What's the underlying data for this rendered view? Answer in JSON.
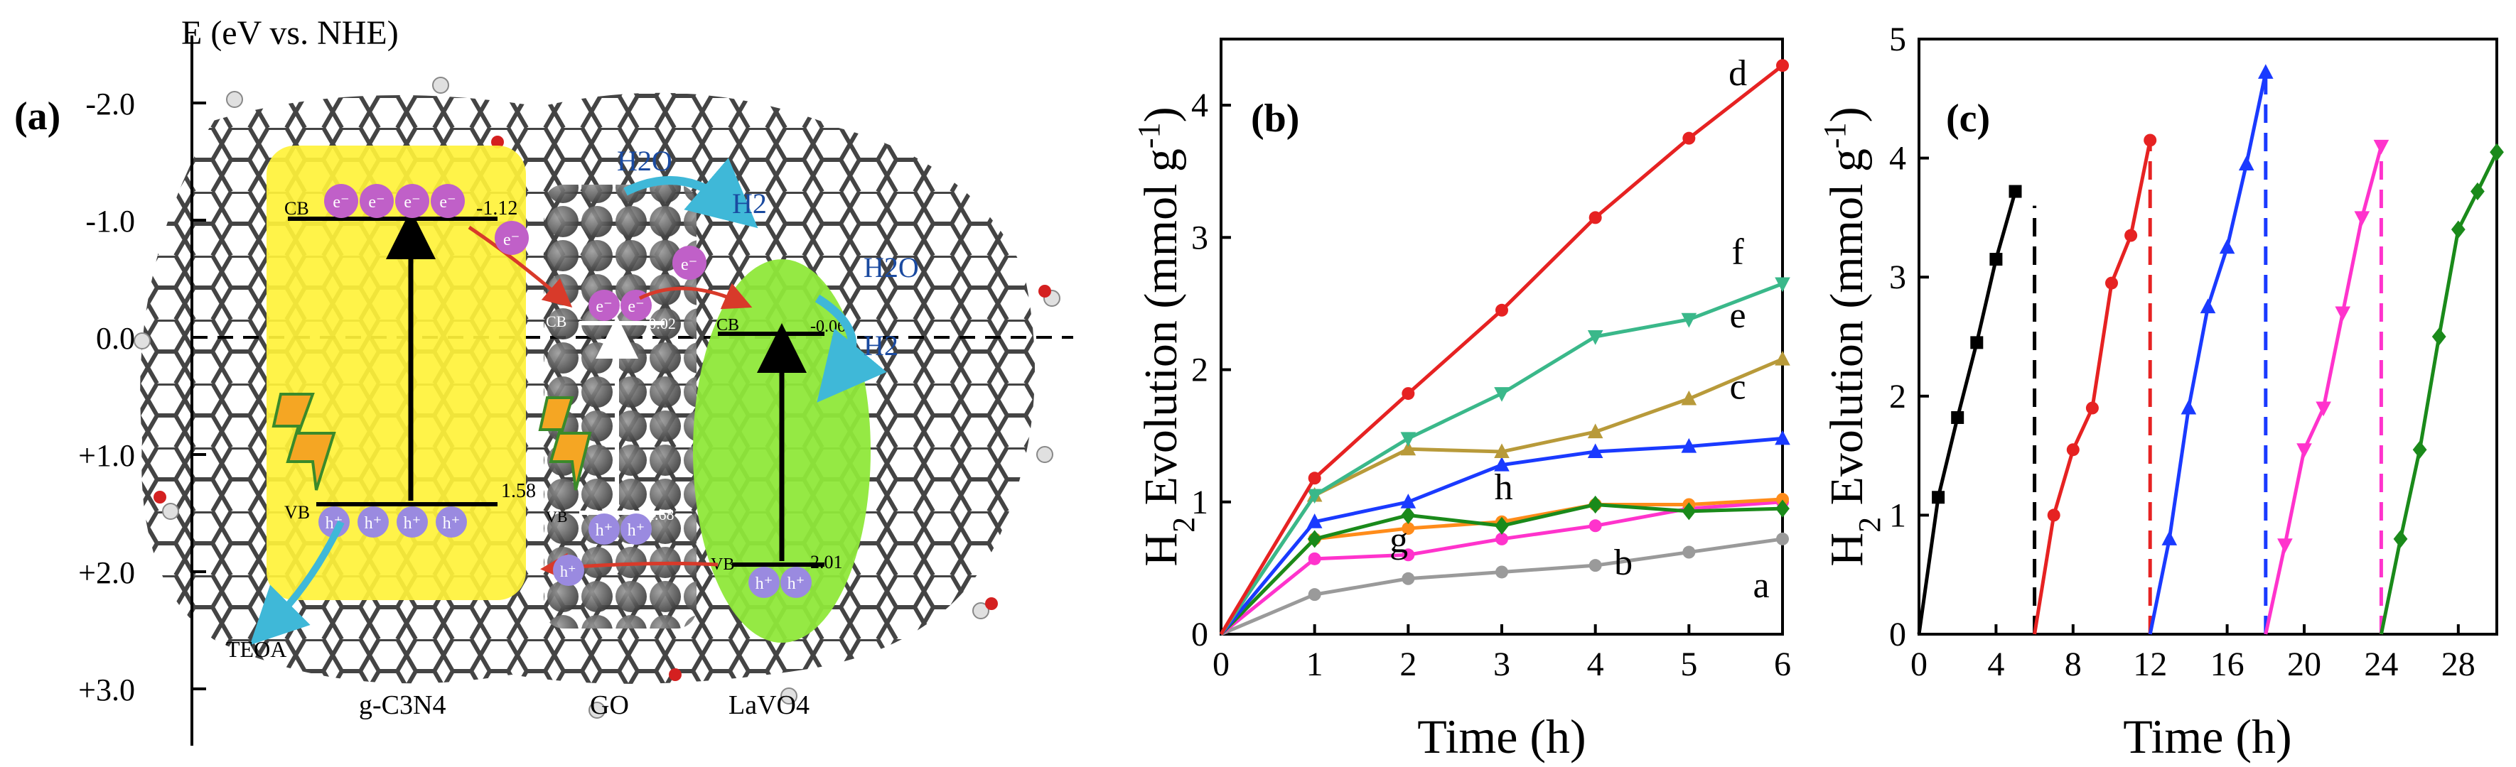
{
  "colors": {
    "yellow_box": "#fff23a",
    "go_box": "#6f6f6f",
    "lavo4_ellipse": "#8fe83a",
    "electron": "#c060c8",
    "hole": "#9a8ae0",
    "water": "#1a4aa0",
    "arrow_cyan": "#3fb8d8"
  },
  "panel_a": {
    "label": "(a)",
    "axis_title": "E (eV vs. NHE)",
    "ticks": [
      "-2.0",
      "-1.0",
      "0.0",
      "+1.0",
      "+2.0",
      "+3.0"
    ],
    "materials": [
      {
        "name": "g-C3N4",
        "cb_label": "CB",
        "cb_value": "-1.12",
        "vb_label": "VB",
        "vb_value": "1.58",
        "cb_carriers": [
          "e⁻",
          "e⁻",
          "e⁻",
          "e⁻"
        ],
        "vb_carriers": [
          "h⁺",
          "h⁺",
          "h⁺",
          "h⁺"
        ]
      },
      {
        "name": "GO",
        "cb_label": "CB",
        "cb_value": "-0.02",
        "vb_label": "VB",
        "vb_value": "1.68",
        "cb_carriers": [
          "e⁻",
          "e⁻"
        ],
        "vb_carriers": [
          "h⁺",
          "h⁺"
        ]
      },
      {
        "name": "LaVO4",
        "cb_label": "CB",
        "cb_value": "-0.06",
        "vb_label": "VB",
        "vb_value": "2.01",
        "cb_carriers": [],
        "vb_carriers": [
          "h⁺",
          "h⁺"
        ]
      }
    ],
    "species": {
      "h2o_1": "H2O",
      "h2_1": "H2",
      "h2o_2": "H2O",
      "h2_2": "H2",
      "teoa": "TEOA"
    },
    "transfer_e": [
      "e⁻",
      "e⁻"
    ],
    "transfer_h": "h⁺"
  },
  "chart_data": [
    {
      "type": "line",
      "panel_label": "(b)",
      "xlabel": "Time (h)",
      "ylabel": "H2 Evolution (mmol g-1)",
      "xlim": [
        0,
        6
      ],
      "ylim": [
        0,
        4.5
      ],
      "xticks": [
        0,
        1,
        2,
        3,
        4,
        5,
        6
      ],
      "yticks": [
        0,
        1,
        2,
        3,
        4
      ],
      "x": [
        0,
        1,
        2,
        3,
        4,
        5,
        6
      ],
      "series": [
        {
          "name": "a",
          "color": "#9a9a9a",
          "marker": "circle",
          "values": [
            0,
            0.3,
            0.42,
            0.47,
            0.52,
            0.62,
            0.72
          ]
        },
        {
          "name": "b",
          "color": "#ff33cc",
          "marker": "circle",
          "values": [
            0,
            0.57,
            0.6,
            0.72,
            0.82,
            0.95,
            1.0
          ]
        },
        {
          "name": "g",
          "color": "#ff8c1a",
          "marker": "circle",
          "values": [
            0,
            0.72,
            0.8,
            0.85,
            0.98,
            0.98,
            1.02
          ]
        },
        {
          "name": "h",
          "color": "#1a8a1a",
          "marker": "diamond",
          "values": [
            0,
            0.72,
            0.9,
            0.82,
            0.98,
            0.93,
            0.95
          ]
        },
        {
          "name": "c",
          "color": "#1a3aff",
          "marker": "triangle-up",
          "values": [
            0,
            0.85,
            1.0,
            1.28,
            1.38,
            1.42,
            1.48
          ]
        },
        {
          "name": "e",
          "color": "#b89a3a",
          "marker": "triangle-up",
          "values": [
            0,
            1.05,
            1.4,
            1.38,
            1.53,
            1.78,
            2.08
          ]
        },
        {
          "name": "f",
          "color": "#3ab88a",
          "marker": "triangle-down",
          "values": [
            0,
            1.05,
            1.48,
            1.82,
            2.25,
            2.38,
            2.65
          ]
        },
        {
          "name": "d",
          "color": "#e62222",
          "marker": "circle",
          "values": [
            0,
            1.18,
            1.82,
            2.45,
            3.15,
            3.75,
            4.3
          ]
        }
      ]
    },
    {
      "type": "line",
      "panel_label": "(c)",
      "xlabel": "Time (h)",
      "ylabel": "H2 Evolution (mmol g-1)",
      "xlim": [
        0,
        30
      ],
      "ylim": [
        0,
        5
      ],
      "xticks": [
        0,
        4,
        8,
        12,
        16,
        20,
        24,
        28
      ],
      "yticks": [
        0,
        1,
        2,
        3,
        4,
        5
      ],
      "series": [
        {
          "color": "#000000",
          "marker": "square",
          "x": [
            0,
            1,
            2,
            3,
            4,
            5
          ],
          "y": [
            0,
            1.15,
            1.82,
            2.45,
            3.15,
            3.72
          ]
        },
        {
          "color": "#e62222",
          "marker": "circle",
          "x": [
            6,
            7,
            8,
            9,
            10,
            11,
            12
          ],
          "y": [
            0,
            1.0,
            1.55,
            1.9,
            2.95,
            3.35,
            4.15
          ]
        },
        {
          "color": "#1a3aff",
          "marker": "triangle-up",
          "x": [
            12,
            13,
            14,
            15,
            16,
            17,
            18
          ],
          "y": [
            0,
            0.8,
            1.9,
            2.75,
            3.25,
            3.95,
            4.72
          ]
        },
        {
          "color": "#ff33cc",
          "marker": "triangle-down",
          "x": [
            18,
            19,
            20,
            21,
            22,
            23,
            24
          ],
          "y": [
            0,
            0.75,
            1.55,
            1.9,
            2.7,
            3.5,
            4.1
          ]
        },
        {
          "color": "#1a8a1a",
          "marker": "diamond",
          "x": [
            24,
            25,
            26,
            27,
            28,
            29,
            30
          ],
          "y": [
            0,
            0.8,
            1.55,
            2.5,
            3.4,
            3.72,
            4.05
          ]
        }
      ],
      "dividers": [
        {
          "x": 6,
          "color": "#000000",
          "y_top": 3.6
        },
        {
          "x": 12,
          "color": "#e62222",
          "y_top": 4.1
        },
        {
          "x": 18,
          "color": "#1a3aff",
          "y_top": 4.72
        },
        {
          "x": 24,
          "color": "#ff33cc",
          "y_top": 4.1
        }
      ]
    }
  ]
}
